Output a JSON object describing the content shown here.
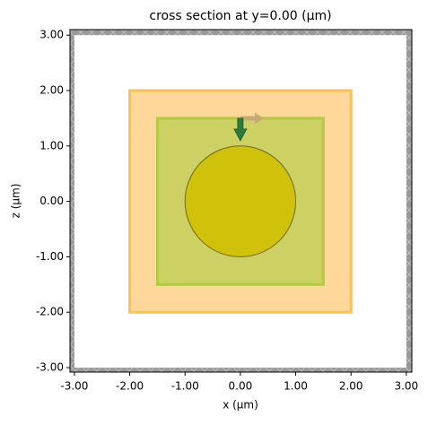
{
  "chart_data": {
    "type": "structure",
    "title": "cross section at y=0.00 (μm)",
    "xlabel": "x (μm)",
    "ylabel": "z (μm)",
    "xlim": [
      -3.08,
      3.1
    ],
    "ylim": [
      -3.08,
      3.1
    ],
    "xticks": [
      {
        "value": -3,
        "label": "-3.00"
      },
      {
        "value": -2,
        "label": "-2.00"
      },
      {
        "value": -1,
        "label": "-1.00"
      },
      {
        "value": 0,
        "label": "0.00"
      },
      {
        "value": 1,
        "label": "1.00"
      },
      {
        "value": 2,
        "label": "2.00"
      },
      {
        "value": 3,
        "label": "3.00"
      }
    ],
    "yticks": [
      {
        "value": -3,
        "label": "-3.00"
      },
      {
        "value": -2,
        "label": "-2.00"
      },
      {
        "value": -1,
        "label": "-1.00"
      },
      {
        "value": 0,
        "label": "0.00"
      },
      {
        "value": 1,
        "label": "1.00"
      },
      {
        "value": 2,
        "label": "2.00"
      },
      {
        "value": 3,
        "label": "3.00"
      }
    ],
    "simulation": {
      "center": [
        0,
        0
      ],
      "size": [
        6,
        6
      ]
    },
    "structures": [
      {
        "shape": "box",
        "center": [
          0,
          0
        ],
        "size": [
          4,
          4
        ],
        "color": "#fed89a",
        "edge": "#f8c258"
      },
      {
        "shape": "box",
        "center": [
          0,
          0
        ],
        "size": [
          3,
          3
        ],
        "color": "#cdd062",
        "edge": "#b3cb42"
      },
      {
        "shape": "circle",
        "center": [
          0,
          0
        ],
        "radius": 1,
        "color": "#d0c10a",
        "edge": "#6e6a1e"
      }
    ],
    "source": {
      "center": [
        0,
        1.5
      ],
      "color": "#2b7a3e",
      "pol_color": "#c4a67a"
    }
  }
}
